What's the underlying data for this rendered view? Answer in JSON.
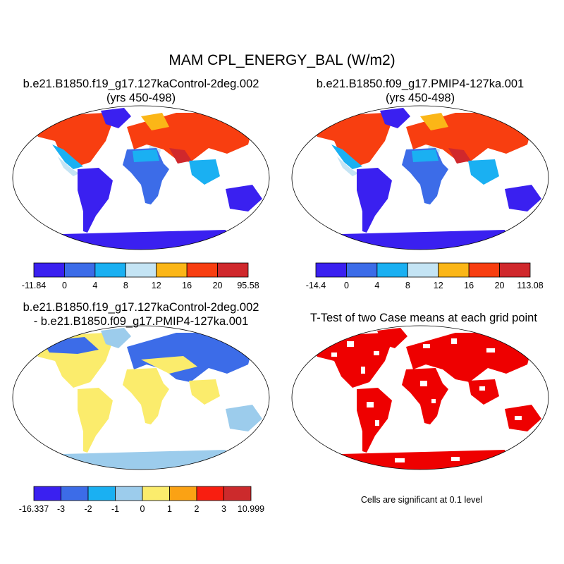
{
  "figure": {
    "title": "MAM CPL_ENERGY_BAL (W/m2)",
    "footnote": "Cells are significant at 0.1 level"
  },
  "panels": [
    {
      "id": "case1",
      "title_line1": "b.e21.B1850.f19_g17.127kaControl-2deg.002",
      "title_line2": "(yrs 450-498)",
      "legend_colors": [
        "#3a20f0",
        "#3c6ce8",
        "#1ab0f2",
        "#c4e4f4",
        "#fbb617",
        "#f83e10",
        "#d0282c"
      ],
      "legend_ticks": [
        "-11.84",
        "0",
        "4",
        "8",
        "12",
        "16",
        "20",
        "95.58"
      ]
    },
    {
      "id": "case2",
      "title_line1": "b.e21.B1850.f09_g17.PMIP4-127ka.001",
      "title_line2": "(yrs 450-498)",
      "legend_colors": [
        "#3a20f0",
        "#3c6ce8",
        "#1ab0f2",
        "#c4e4f4",
        "#fbb617",
        "#f83e10",
        "#d0282c"
      ],
      "legend_ticks": [
        "-14.4",
        "0",
        "4",
        "8",
        "12",
        "16",
        "20",
        "113.08"
      ]
    },
    {
      "id": "difference",
      "title_line1": "b.e21.B1850.f19_g17.127kaControl-2deg.002",
      "title_line2": "- b.e21.B1850.f09_g17.PMIP4-127ka.001",
      "legend_colors": [
        "#3a20f0",
        "#3c6ce8",
        "#1ab0f2",
        "#9cccec",
        "#fbec6c",
        "#fba214",
        "#f81e10",
        "#cc2a2c"
      ],
      "legend_ticks": [
        "-16.337",
        "-3",
        "-2",
        "-1",
        "0",
        "1",
        "2",
        "3",
        "10.999"
      ]
    },
    {
      "id": "ttest",
      "title_line1": "T-Test of two Case means at each grid point",
      "title_line2": "",
      "significant_color": "#ee0000"
    }
  ]
}
